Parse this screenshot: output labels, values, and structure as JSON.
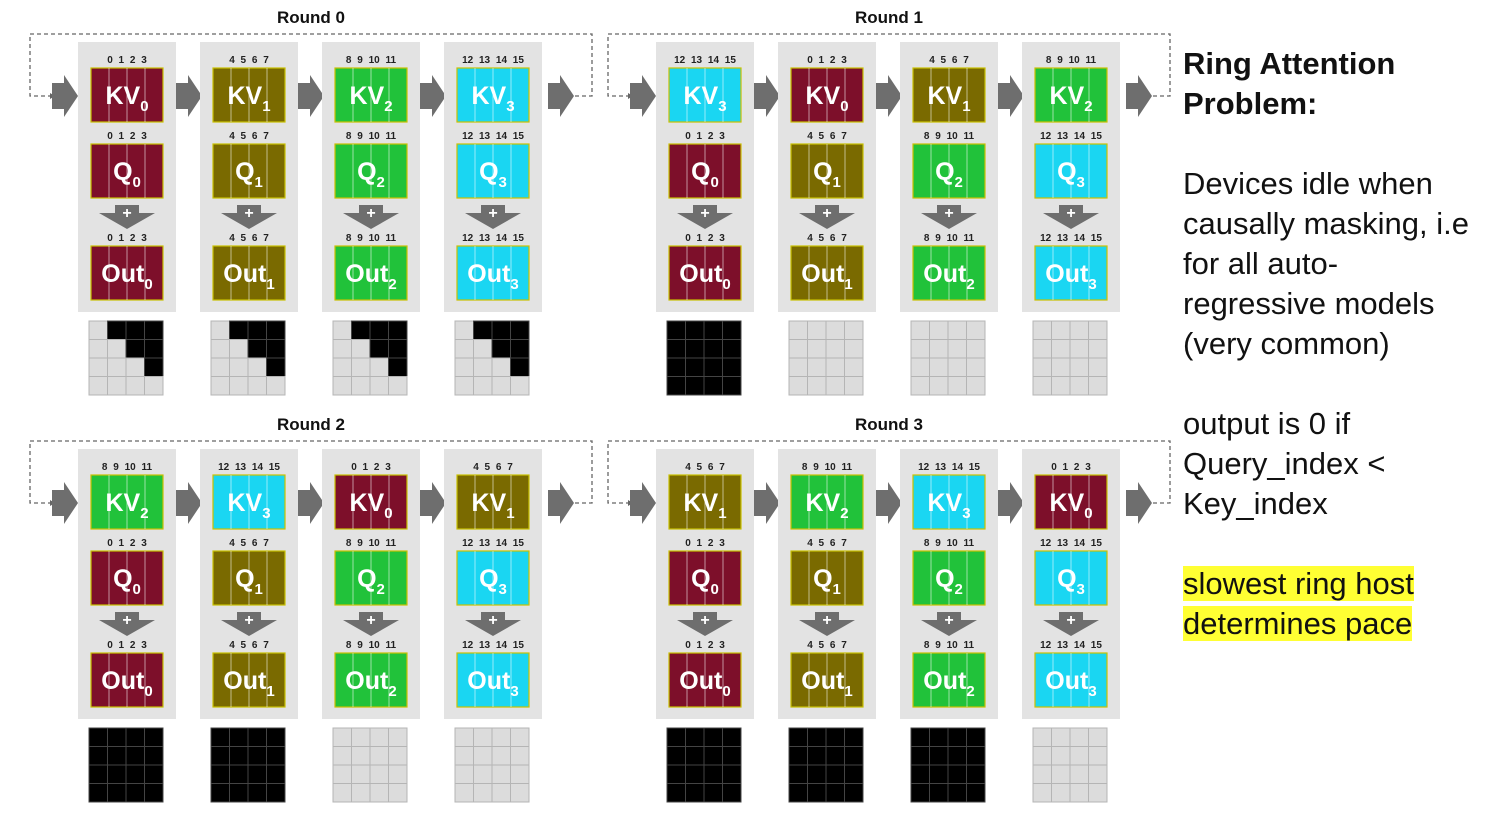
{
  "colors": {
    "kv0": "#7d0f2a",
    "kv1": "#7a6a00",
    "kv2": "#21c23a",
    "kv3": "#1ad6f2",
    "panel": "#e3e3e3",
    "arrow": "#6e6e6e",
    "mask_fill": "#000000",
    "mask_empty": "#dcdcdc",
    "highlight": "#ffff33"
  },
  "rounds": [
    {
      "title": "Round 0",
      "devices": [
        {
          "kv": {
            "label": "KV",
            "sub": "0",
            "color": "kv0",
            "indices": "0 1 2 3"
          },
          "q": {
            "label": "Q",
            "sub": "0",
            "color": "kv0",
            "indices": "0 1 2 3"
          },
          "out": {
            "label": "Out",
            "sub": "0",
            "color": "kv0",
            "indices": "0 1 2 3"
          },
          "mask": [
            [
              0,
              1,
              1,
              1
            ],
            [
              0,
              0,
              1,
              1
            ],
            [
              0,
              0,
              0,
              1
            ],
            [
              0,
              0,
              0,
              0
            ]
          ]
        },
        {
          "kv": {
            "label": "KV",
            "sub": "1",
            "color": "kv1",
            "indices": "4 5 6 7"
          },
          "q": {
            "label": "Q",
            "sub": "1",
            "color": "kv1",
            "indices": "4 5 6 7"
          },
          "out": {
            "label": "Out",
            "sub": "1",
            "color": "kv1",
            "indices": "4 5 6 7"
          },
          "mask": [
            [
              0,
              1,
              1,
              1
            ],
            [
              0,
              0,
              1,
              1
            ],
            [
              0,
              0,
              0,
              1
            ],
            [
              0,
              0,
              0,
              0
            ]
          ]
        },
        {
          "kv": {
            "label": "KV",
            "sub": "2",
            "color": "kv2",
            "indices": "8 9 10 11"
          },
          "q": {
            "label": "Q",
            "sub": "2",
            "color": "kv2",
            "indices": "8 9 10 11"
          },
          "out": {
            "label": "Out",
            "sub": "2",
            "color": "kv2",
            "indices": "8 9 10 11"
          },
          "mask": [
            [
              0,
              1,
              1,
              1
            ],
            [
              0,
              0,
              1,
              1
            ],
            [
              0,
              0,
              0,
              1
            ],
            [
              0,
              0,
              0,
              0
            ]
          ]
        },
        {
          "kv": {
            "label": "KV",
            "sub": "3",
            "color": "kv3",
            "indices": "12 13 14 15"
          },
          "q": {
            "label": "Q",
            "sub": "3",
            "color": "kv3",
            "indices": "12 13 14 15"
          },
          "out": {
            "label": "Out",
            "sub": "3",
            "color": "kv3",
            "indices": "12 13 14 15"
          },
          "mask": [
            [
              0,
              1,
              1,
              1
            ],
            [
              0,
              0,
              1,
              1
            ],
            [
              0,
              0,
              0,
              1
            ],
            [
              0,
              0,
              0,
              0
            ]
          ]
        }
      ]
    },
    {
      "title": "Round 1",
      "devices": [
        {
          "kv": {
            "label": "KV",
            "sub": "3",
            "color": "kv3",
            "indices": "12 13 14 15"
          },
          "q": {
            "label": "Q",
            "sub": "0",
            "color": "kv0",
            "indices": "0 1 2 3"
          },
          "out": {
            "label": "Out",
            "sub": "0",
            "color": "kv0",
            "indices": "0 1 2 3"
          },
          "mask": [
            [
              1,
              1,
              1,
              1
            ],
            [
              1,
              1,
              1,
              1
            ],
            [
              1,
              1,
              1,
              1
            ],
            [
              1,
              1,
              1,
              1
            ]
          ]
        },
        {
          "kv": {
            "label": "KV",
            "sub": "0",
            "color": "kv0",
            "indices": "0 1 2 3"
          },
          "q": {
            "label": "Q",
            "sub": "1",
            "color": "kv1",
            "indices": "4 5 6 7"
          },
          "out": {
            "label": "Out",
            "sub": "1",
            "color": "kv1",
            "indices": "4 5 6 7"
          },
          "mask": [
            [
              0,
              0,
              0,
              0
            ],
            [
              0,
              0,
              0,
              0
            ],
            [
              0,
              0,
              0,
              0
            ],
            [
              0,
              0,
              0,
              0
            ]
          ]
        },
        {
          "kv": {
            "label": "KV",
            "sub": "1",
            "color": "kv1",
            "indices": "4 5 6 7"
          },
          "q": {
            "label": "Q",
            "sub": "2",
            "color": "kv2",
            "indices": "8 9 10 11"
          },
          "out": {
            "label": "Out",
            "sub": "2",
            "color": "kv2",
            "indices": "8 9 10 11"
          },
          "mask": [
            [
              0,
              0,
              0,
              0
            ],
            [
              0,
              0,
              0,
              0
            ],
            [
              0,
              0,
              0,
              0
            ],
            [
              0,
              0,
              0,
              0
            ]
          ]
        },
        {
          "kv": {
            "label": "KV",
            "sub": "2",
            "color": "kv2",
            "indices": "8 9 10 11"
          },
          "q": {
            "label": "Q",
            "sub": "3",
            "color": "kv3",
            "indices": "12 13 14 15"
          },
          "out": {
            "label": "Out",
            "sub": "3",
            "color": "kv3",
            "indices": "12 13 14 15"
          },
          "mask": [
            [
              0,
              0,
              0,
              0
            ],
            [
              0,
              0,
              0,
              0
            ],
            [
              0,
              0,
              0,
              0
            ],
            [
              0,
              0,
              0,
              0
            ]
          ]
        }
      ]
    },
    {
      "title": "Round 2",
      "devices": [
        {
          "kv": {
            "label": "KV",
            "sub": "2",
            "color": "kv2",
            "indices": "8 9 10 11"
          },
          "q": {
            "label": "Q",
            "sub": "0",
            "color": "kv0",
            "indices": "0 1 2 3"
          },
          "out": {
            "label": "Out",
            "sub": "0",
            "color": "kv0",
            "indices": "0 1 2 3"
          },
          "mask": [
            [
              1,
              1,
              1,
              1
            ],
            [
              1,
              1,
              1,
              1
            ],
            [
              1,
              1,
              1,
              1
            ],
            [
              1,
              1,
              1,
              1
            ]
          ]
        },
        {
          "kv": {
            "label": "KV",
            "sub": "3",
            "color": "kv3",
            "indices": "12 13 14 15"
          },
          "q": {
            "label": "Q",
            "sub": "1",
            "color": "kv1",
            "indices": "4 5 6 7"
          },
          "out": {
            "label": "Out",
            "sub": "1",
            "color": "kv1",
            "indices": "4 5 6 7"
          },
          "mask": [
            [
              1,
              1,
              1,
              1
            ],
            [
              1,
              1,
              1,
              1
            ],
            [
              1,
              1,
              1,
              1
            ],
            [
              1,
              1,
              1,
              1
            ]
          ]
        },
        {
          "kv": {
            "label": "KV",
            "sub": "0",
            "color": "kv0",
            "indices": "0 1 2 3"
          },
          "q": {
            "label": "Q",
            "sub": "2",
            "color": "kv2",
            "indices": "8 9 10 11"
          },
          "out": {
            "label": "Out",
            "sub": "2",
            "color": "kv2",
            "indices": "8 9 10 11"
          },
          "mask": [
            [
              0,
              0,
              0,
              0
            ],
            [
              0,
              0,
              0,
              0
            ],
            [
              0,
              0,
              0,
              0
            ],
            [
              0,
              0,
              0,
              0
            ]
          ]
        },
        {
          "kv": {
            "label": "KV",
            "sub": "1",
            "color": "kv1",
            "indices": "4 5 6 7"
          },
          "q": {
            "label": "Q",
            "sub": "3",
            "color": "kv3",
            "indices": "12 13 14 15"
          },
          "out": {
            "label": "Out",
            "sub": "3",
            "color": "kv3",
            "indices": "12 13 14 15"
          },
          "mask": [
            [
              0,
              0,
              0,
              0
            ],
            [
              0,
              0,
              0,
              0
            ],
            [
              0,
              0,
              0,
              0
            ],
            [
              0,
              0,
              0,
              0
            ]
          ]
        }
      ]
    },
    {
      "title": "Round 3",
      "devices": [
        {
          "kv": {
            "label": "KV",
            "sub": "1",
            "color": "kv1",
            "indices": "4 5 6 7"
          },
          "q": {
            "label": "Q",
            "sub": "0",
            "color": "kv0",
            "indices": "0 1 2 3"
          },
          "out": {
            "label": "Out",
            "sub": "0",
            "color": "kv0",
            "indices": "0 1 2 3"
          },
          "mask": [
            [
              1,
              1,
              1,
              1
            ],
            [
              1,
              1,
              1,
              1
            ],
            [
              1,
              1,
              1,
              1
            ],
            [
              1,
              1,
              1,
              1
            ]
          ]
        },
        {
          "kv": {
            "label": "KV",
            "sub": "2",
            "color": "kv2",
            "indices": "8 9 10 11"
          },
          "q": {
            "label": "Q",
            "sub": "1",
            "color": "kv1",
            "indices": "4 5 6 7"
          },
          "out": {
            "label": "Out",
            "sub": "1",
            "color": "kv1",
            "indices": "4 5 6 7"
          },
          "mask": [
            [
              1,
              1,
              1,
              1
            ],
            [
              1,
              1,
              1,
              1
            ],
            [
              1,
              1,
              1,
              1
            ],
            [
              1,
              1,
              1,
              1
            ]
          ]
        },
        {
          "kv": {
            "label": "KV",
            "sub": "3",
            "color": "kv3",
            "indices": "12 13 14 15"
          },
          "q": {
            "label": "Q",
            "sub": "2",
            "color": "kv2",
            "indices": "8 9 10 11"
          },
          "out": {
            "label": "Out",
            "sub": "2",
            "color": "kv2",
            "indices": "8 9 10 11"
          },
          "mask": [
            [
              1,
              1,
              1,
              1
            ],
            [
              1,
              1,
              1,
              1
            ],
            [
              1,
              1,
              1,
              1
            ],
            [
              1,
              1,
              1,
              1
            ]
          ]
        },
        {
          "kv": {
            "label": "KV",
            "sub": "0",
            "color": "kv0",
            "indices": "0 1 2 3"
          },
          "q": {
            "label": "Q",
            "sub": "3",
            "color": "kv3",
            "indices": "12 13 14 15"
          },
          "out": {
            "label": "Out",
            "sub": "3",
            "color": "kv3",
            "indices": "12 13 14 15"
          },
          "mask": [
            [
              0,
              0,
              0,
              0
            ],
            [
              0,
              0,
              0,
              0
            ],
            [
              0,
              0,
              0,
              0
            ],
            [
              0,
              0,
              0,
              0
            ]
          ]
        }
      ]
    }
  ],
  "plus_symbol": "+",
  "sidebar": {
    "title": [
      "Ring Attention",
      "Problem:"
    ],
    "para1": [
      "Devices idle when",
      "causally masking, i.e",
      "for all auto-",
      "regressive models",
      "(very common)"
    ],
    "para2": [
      "output is 0 if",
      "Query_index <",
      "Key_index"
    ],
    "highlight": [
      "slowest ring host",
      "determines pace"
    ]
  }
}
